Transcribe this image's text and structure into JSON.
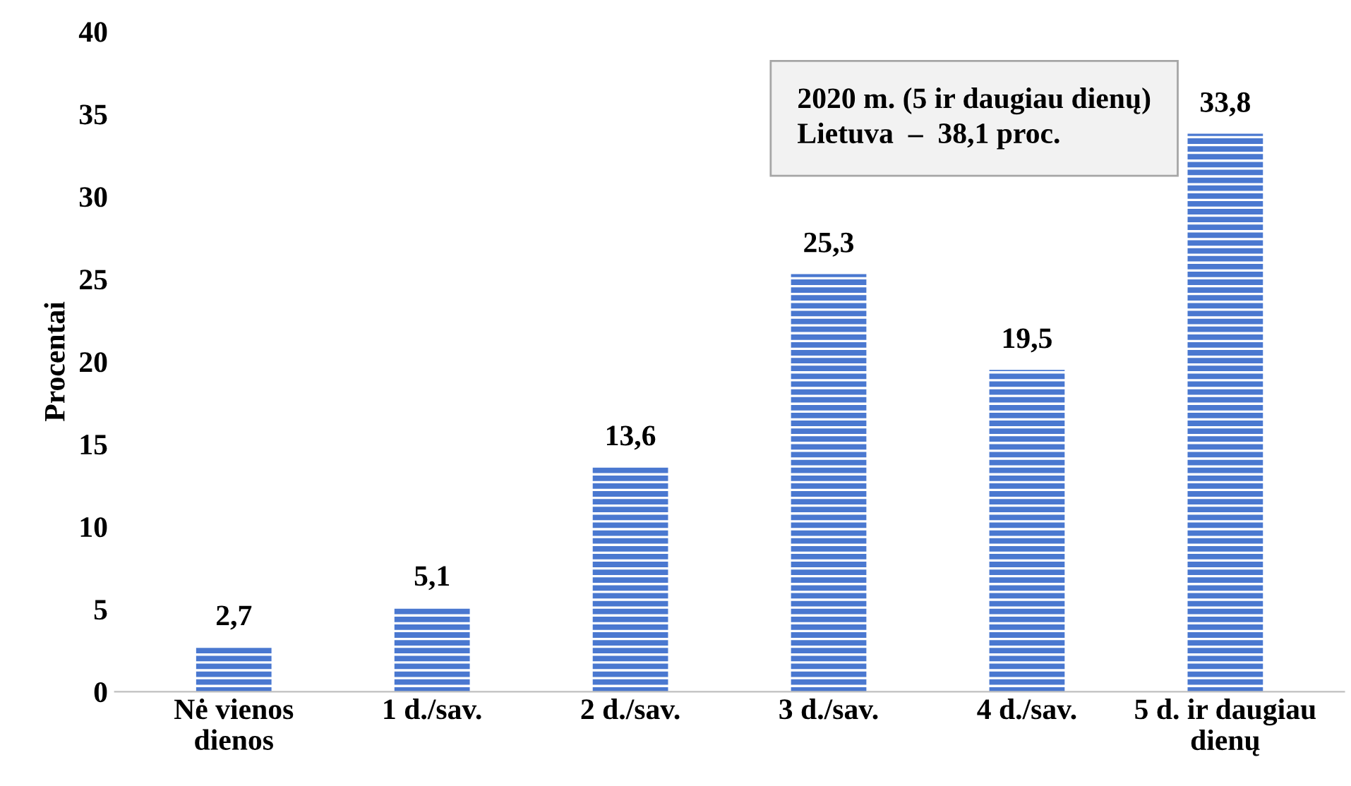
{
  "chart_data": {
    "type": "bar",
    "ylabel": "Procentai",
    "categories": [
      "Nė vienos\ndienos",
      "1 d./sav.",
      "2 d./sav.",
      "3 d./sav.",
      "4 d./sav.",
      "5 d. ir daugiau\ndienų"
    ],
    "values": [
      2.7,
      5.1,
      13.6,
      25.3,
      19.5,
      33.8
    ],
    "value_labels": [
      "2,7",
      "5,1",
      "13,6",
      "25,3",
      "19,5",
      "33,8"
    ],
    "color": "#4a78d0",
    "ylim": [
      0,
      40
    ],
    "yticks": [
      0,
      5,
      10,
      15,
      20,
      25,
      30,
      35,
      40
    ],
    "grid": false,
    "annotations": [
      "2020 m. (5 ir daugiau dienų)",
      "Lietuva  –  38,1 proc."
    ]
  }
}
